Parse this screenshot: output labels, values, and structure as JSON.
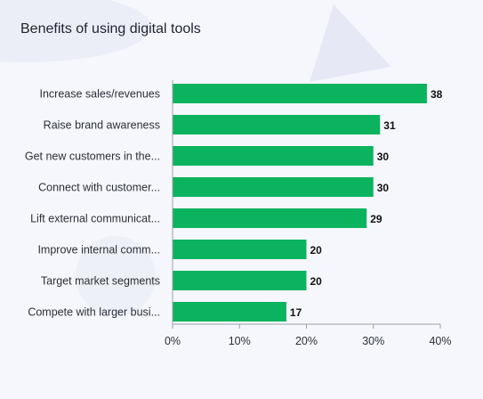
{
  "chart_data": {
    "type": "bar",
    "orientation": "horizontal",
    "title": "Benefits of using digital tools",
    "categories": [
      "Increase sales/revenues",
      "Raise brand awareness",
      "Get new customers in the...",
      "Connect with customer...",
      "Lift external communicat...",
      "Improve internal comm...",
      "Target market segments",
      "Compete with larger busi..."
    ],
    "values": [
      38,
      31,
      30,
      30,
      29,
      20,
      20,
      17
    ],
    "value_labels": [
      "38",
      "31",
      "30",
      "30",
      "29",
      "20",
      "20",
      "17"
    ],
    "xlim": [
      0,
      40
    ],
    "x_ticks": [
      0,
      10,
      20,
      30,
      40
    ],
    "x_tick_labels": [
      "0%",
      "10%",
      "20%",
      "30%",
      "40%"
    ],
    "grid": false,
    "colors": {
      "bar": "#0bb35f",
      "background": "#f6f7fc",
      "axis": "#9aa0aa",
      "text": "#2b2f3a",
      "decoration": "#e8ebf6"
    }
  }
}
